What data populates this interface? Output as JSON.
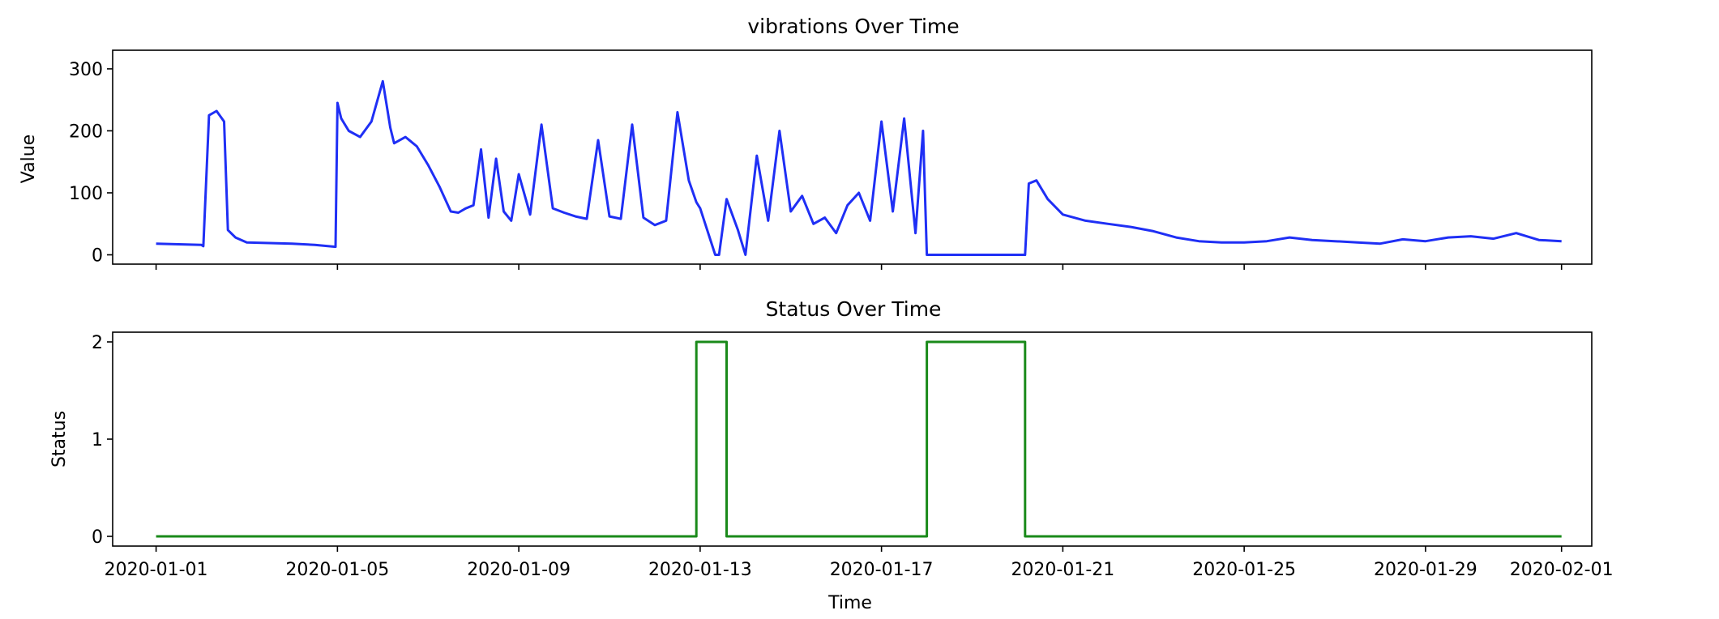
{
  "chart_data": [
    {
      "type": "line",
      "title": "vibrations Over Time",
      "xlabel": "",
      "ylabel": "Value",
      "ylim": [
        -15,
        330
      ],
      "yticks": [
        0,
        100,
        200,
        300
      ],
      "xlim": [
        "2019-12-31T01:00",
        "2020-02-01T16:00"
      ],
      "xticks": [
        "2020-01-01",
        "2020-01-05",
        "2020-01-09",
        "2020-01-13",
        "2020-01-17",
        "2020-01-21",
        "2020-01-25",
        "2020-01-29",
        "2020-02-01"
      ],
      "xticklabels_visible": false,
      "grid": false,
      "color": "#1f2ff5",
      "series": [
        {
          "x": [
            "2020-01-01T00:00",
            "2020-01-01T12:00",
            "2020-01-02T00:00",
            "2020-01-02T01:00",
            "2020-01-02T04:00",
            "2020-01-02T08:00",
            "2020-01-02T12:00",
            "2020-01-02T14:00",
            "2020-01-02T18:00",
            "2020-01-03T00:00",
            "2020-01-03T12:00",
            "2020-01-04T00:00",
            "2020-01-04T12:00",
            "2020-01-04T23:00",
            "2020-01-05T00:00",
            "2020-01-05T02:00",
            "2020-01-05T06:00",
            "2020-01-05T12:00",
            "2020-01-05T18:00",
            "2020-01-06T00:00",
            "2020-01-06T04:00",
            "2020-01-06T06:00",
            "2020-01-06T12:00",
            "2020-01-06T18:00",
            "2020-01-07T00:00",
            "2020-01-07T06:00",
            "2020-01-07T12:00",
            "2020-01-07T16:00",
            "2020-01-07T20:00",
            "2020-01-08T00:00",
            "2020-01-08T04:00",
            "2020-01-08T08:00",
            "2020-01-08T12:00",
            "2020-01-08T16:00",
            "2020-01-08T20:00",
            "2020-01-09T00:00",
            "2020-01-09T06:00",
            "2020-01-09T12:00",
            "2020-01-09T18:00",
            "2020-01-10T00:00",
            "2020-01-10T06:00",
            "2020-01-10T12:00",
            "2020-01-10T18:00",
            "2020-01-11T00:00",
            "2020-01-11T06:00",
            "2020-01-11T12:00",
            "2020-01-11T18:00",
            "2020-01-11T22:00",
            "2020-01-12T00:00",
            "2020-01-12T06:00",
            "2020-01-12T12:00",
            "2020-01-12T18:00",
            "2020-01-12T22:00",
            "2020-01-13T00:00",
            "2020-01-13T08:00",
            "2020-01-13T10:00",
            "2020-01-13T14:00",
            "2020-01-13T20:00",
            "2020-01-14T00:00",
            "2020-01-14T06:00",
            "2020-01-14T12:00",
            "2020-01-14T18:00",
            "2020-01-15T00:00",
            "2020-01-15T06:00",
            "2020-01-15T12:00",
            "2020-01-15T18:00",
            "2020-01-16T00:00",
            "2020-01-16T06:00",
            "2020-01-16T12:00",
            "2020-01-16T18:00",
            "2020-01-17T00:00",
            "2020-01-17T06:00",
            "2020-01-17T12:00",
            "2020-01-17T18:00",
            "2020-01-17T22:00",
            "2020-01-18T00:00",
            "2020-01-18T12:00",
            "2020-01-19T00:00",
            "2020-01-19T12:00",
            "2020-01-20T00:00",
            "2020-01-20T04:00",
            "2020-01-20T06:00",
            "2020-01-20T10:00",
            "2020-01-20T16:00",
            "2020-01-21T00:00",
            "2020-01-21T12:00",
            "2020-01-22T00:00",
            "2020-01-22T12:00",
            "2020-01-23T00:00",
            "2020-01-23T12:00",
            "2020-01-24T00:00",
            "2020-01-24T12:00",
            "2020-01-25T00:00",
            "2020-01-25T12:00",
            "2020-01-26T00:00",
            "2020-01-26T12:00",
            "2020-01-27T00:00",
            "2020-01-27T12:00",
            "2020-01-28T00:00",
            "2020-01-28T12:00",
            "2020-01-29T00:00",
            "2020-01-29T12:00",
            "2020-01-30T00:00",
            "2020-01-30T12:00",
            "2020-01-31T00:00",
            "2020-01-31T12:00",
            "2020-02-01T00:00"
          ],
          "y": [
            18,
            17,
            16,
            14,
            225,
            232,
            215,
            40,
            28,
            20,
            19,
            18,
            16,
            13,
            245,
            220,
            200,
            190,
            215,
            280,
            205,
            180,
            190,
            175,
            145,
            110,
            70,
            68,
            75,
            80,
            170,
            60,
            155,
            70,
            55,
            130,
            65,
            210,
            75,
            68,
            62,
            58,
            185,
            62,
            58,
            210,
            60,
            52,
            48,
            55,
            230,
            120,
            85,
            75,
            0,
            0,
            90,
            40,
            0,
            160,
            55,
            200,
            70,
            95,
            50,
            60,
            35,
            80,
            100,
            55,
            215,
            70,
            220,
            35,
            200,
            0,
            0,
            0,
            0,
            0,
            0,
            115,
            120,
            90,
            65,
            55,
            50,
            45,
            38,
            28,
            22,
            20,
            20,
            22,
            28,
            24,
            22,
            20,
            18,
            25,
            22,
            28,
            30,
            26,
            35,
            24,
            22
          ]
        }
      ]
    },
    {
      "type": "line",
      "title": "Status Over Time",
      "xlabel": "Time",
      "ylabel": "Status",
      "ylim": [
        -0.1,
        2.1
      ],
      "yticks": [
        0,
        1,
        2
      ],
      "xlim": [
        "2019-12-31T01:00",
        "2020-02-01T16:00"
      ],
      "xticks": [
        "2020-01-01",
        "2020-01-05",
        "2020-01-09",
        "2020-01-13",
        "2020-01-17",
        "2020-01-21",
        "2020-01-25",
        "2020-01-29",
        "2020-02-01"
      ],
      "xticklabels": [
        "2020-01-01",
        "2020-01-05",
        "2020-01-09",
        "2020-01-13",
        "2020-01-17",
        "2020-01-21",
        "2020-01-25",
        "2020-01-29",
        "2020-02-01"
      ],
      "grid": false,
      "color": "#1a8a1a",
      "series": [
        {
          "x": [
            "2020-01-01T00:00",
            "2020-01-12T22:00",
            "2020-01-12T22:00",
            "2020-01-13T14:00",
            "2020-01-13T14:00",
            "2020-01-18T00:00",
            "2020-01-18T00:00",
            "2020-01-20T04:00",
            "2020-01-20T04:00",
            "2020-02-01T00:00"
          ],
          "y": [
            0,
            0,
            2,
            2,
            0,
            0,
            2,
            2,
            0,
            0
          ]
        }
      ]
    }
  ]
}
